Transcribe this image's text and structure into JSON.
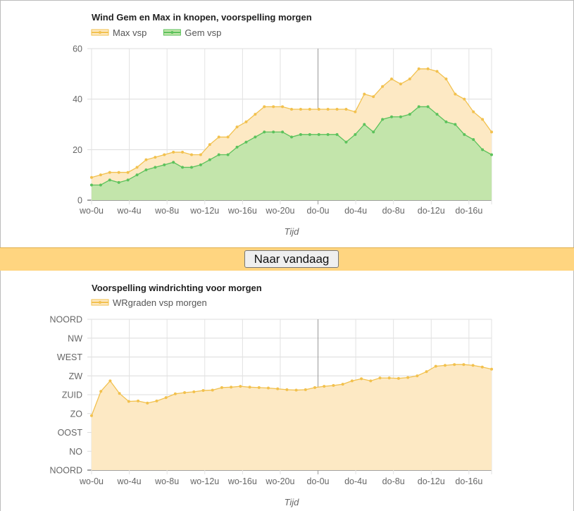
{
  "colors": {
    "max_line": "#f2c14e",
    "max_fill": "#fde9c4",
    "gem_line": "#5cc25c",
    "gem_fill": "#c3e5ab",
    "dir_line": "#f2c14e",
    "dir_fill": "#fde9c4",
    "band": "#ffd580"
  },
  "nav": {
    "today_button": "Naar vandaag"
  },
  "chart_data": [
    {
      "type": "area",
      "title": "Wind Gem en Max in knopen, voorspelling morgen",
      "xlabel": "Tijd",
      "ylabel": "",
      "ylim": [
        0,
        60
      ],
      "yticks": [
        "0",
        "20",
        "40",
        "60"
      ],
      "grid": true,
      "legend_placement": "top-left",
      "x_tick_labels": [
        "wo-0u",
        "wo-4u",
        "wo-8u",
        "wo-12u",
        "wo-16u",
        "wo-20u",
        "do-0u",
        "do-4u",
        "do-8u",
        "do-12u",
        "do-16u"
      ],
      "series": [
        {
          "name": "Max vsp",
          "values": [
            9,
            10,
            11,
            11,
            11,
            13,
            16,
            17,
            18,
            19,
            19,
            18,
            18,
            22,
            25,
            25,
            29,
            31,
            34,
            37,
            37,
            37,
            36,
            36,
            36,
            36,
            36,
            36,
            36,
            35,
            42,
            41,
            45,
            48,
            46,
            48,
            52,
            52,
            51,
            48,
            42,
            40,
            35,
            32,
            27
          ]
        },
        {
          "name": "Gem vsp",
          "values": [
            6,
            6,
            8,
            7,
            8,
            10,
            12,
            13,
            14,
            15,
            13,
            13,
            14,
            16,
            18,
            18,
            21,
            23,
            25,
            27,
            27,
            27,
            25,
            26,
            26,
            26,
            26,
            26,
            23,
            26,
            30,
            27,
            32,
            33,
            33,
            34,
            37,
            37,
            34,
            31,
            30,
            26,
            24,
            20,
            18
          ]
        }
      ]
    },
    {
      "type": "area",
      "title": "Voorspelling windrichting voor morgen",
      "xlabel": "Tijd",
      "ylabel": "",
      "ylim": [
        0,
        360
      ],
      "y_tick_values": [
        0,
        45,
        90,
        135,
        180,
        225,
        270,
        315,
        360
      ],
      "y_tick_labels": [
        "NOORD",
        "NO",
        "OOST",
        "ZO",
        "ZUID",
        "ZW",
        "WEST",
        "NW",
        "NOORD"
      ],
      "grid": true,
      "legend_placement": "top-left",
      "x_tick_labels": [
        "wo-0u",
        "wo-4u",
        "wo-8u",
        "wo-12u",
        "wo-16u",
        "wo-20u",
        "do-0u",
        "do-4u",
        "do-8u",
        "do-12u",
        "do-16u"
      ],
      "series": [
        {
          "name": "WRgraden vsp morgen",
          "values": [
            130,
            188,
            213,
            183,
            164,
            165,
            160,
            165,
            173,
            182,
            185,
            187,
            190,
            191,
            197,
            198,
            200,
            198,
            197,
            196,
            194,
            192,
            191,
            192,
            197,
            200,
            202,
            205,
            213,
            218,
            213,
            220,
            220,
            219,
            221,
            225,
            235,
            248,
            250,
            252,
            252,
            250,
            246,
            241
          ]
        }
      ]
    }
  ]
}
